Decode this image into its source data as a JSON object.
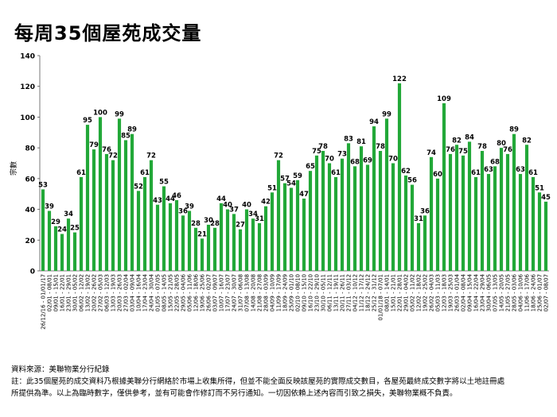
{
  "title": "每周35個屋苑成交量",
  "source": "資料來源：美聯物業分行紀錄",
  "note_line1": "註：此35個屋苑的成交資料乃根據美聯分行網絡於市場上收集所得，但並不能全面反映該屋苑的實際成交數目，各屋苑最終成交數字將以土地註冊處",
  "note_line2": "所提供為準。以上為臨時數字，僅供參考，並有可能會作修訂而不另行通知。一切因依賴上述內容而引致之損失，美聯物業概不負責。",
  "chart_data": {
    "type": "bar",
    "title": "每周35個屋苑成交量",
    "ylabel": "宗數",
    "xlabel": "",
    "ylim": [
      0,
      140
    ],
    "yticks": [
      0,
      20,
      40,
      60,
      80,
      100,
      120,
      140
    ],
    "bar_color": "#22a838",
    "grid": false,
    "categories": [
      "26/12/16 - 01/01/17",
      "02/01 - 08/01",
      "09/01 - 15/01",
      "16/01 - 22/01",
      "23/01 - 29/01",
      "30/01 - 05/02",
      "06/02 - 12/02",
      "13/02 - 19/02",
      "20/02 - 26/02",
      "27/02 - 05/03",
      "06/03 - 12/03",
      "13/03 - 19/03",
      "20/03 - 26/03",
      "27/03 - 02/04",
      "03/04 - 09/04",
      "10/04 - 16/04",
      "17/04 - 23/04",
      "24/04 - 30/04",
      "01/05 - 07/05",
      "08/05 - 14/05",
      "15/05 - 21/05",
      "22/05 - 28/05",
      "29/05 - 04/06",
      "05/06 - 11/06",
      "12/06 - 18/06",
      "19/06 - 25/06",
      "26/06 - 02/07",
      "03/07 - 09/07",
      "10/07 - 16/07",
      "17/07 - 23/07",
      "24/07 - 30/07",
      "31/07 - 06/08",
      "07/08 - 13/08",
      "14/08 - 20/08",
      "21/08 - 27/08",
      "28/08 - 03/09",
      "04/09 - 10/09",
      "11/09 - 17/09",
      "18/09 - 24/09",
      "25/09 - 01/10",
      "02/10 - 08/10",
      "09/10 - 15/10",
      "16/10 - 22/10",
      "23/10 - 29/10",
      "30/10 - 05/11",
      "06/11 - 12/11",
      "13/11 - 19/11",
      "20/11 - 26/11",
      "27/11 - 03/12",
      "04/12 - 10/12",
      "11/12 - 17/12",
      "18/12 - 24/12",
      "25/12 - 31/12",
      "01/01/18 - 07/01",
      "08/01 - 14/01",
      "15/01 - 21/01",
      "22/01 - 28/01",
      "29/01 - 04/02",
      "05/02 - 11/02",
      "12/02 - 18/02",
      "19/02 - 25/02",
      "26/02 - 04/03",
      "05/03 - 11/03",
      "12/03 - 18/03",
      "19/03 - 25/03",
      "26/03 - 01/04",
      "02/04 - 08/04",
      "09/04 - 15/04",
      "16/04 - 22/04",
      "23/04 - 29/04",
      "30/04 - 06/05",
      "07/05 - 13/05",
      "14/05 - 20/05",
      "21/05 - 27/05",
      "28/05 - 03/06",
      "04/06 - 10/06",
      "11/06 - 17/06",
      "18/06 - 24/06",
      "25/06 - 01/07",
      "02/07 - 08/07"
    ],
    "values": [
      53,
      39,
      29,
      24,
      34,
      25,
      61,
      95,
      79,
      100,
      76,
      72,
      99,
      85,
      89,
      52,
      61,
      72,
      43,
      55,
      44,
      46,
      36,
      39,
      28,
      21,
      30,
      28,
      44,
      40,
      37,
      27,
      40,
      34,
      31,
      42,
      51,
      72,
      57,
      54,
      59,
      47,
      65,
      75,
      78,
      70,
      61,
      73,
      83,
      68,
      81,
      69,
      94,
      78,
      99,
      70,
      122,
      62,
      56,
      31,
      36,
      74,
      60,
      109,
      76,
      82,
      75,
      84,
      61,
      78,
      63,
      68,
      80,
      76,
      89,
      63,
      82,
      61,
      51,
      45
    ]
  }
}
